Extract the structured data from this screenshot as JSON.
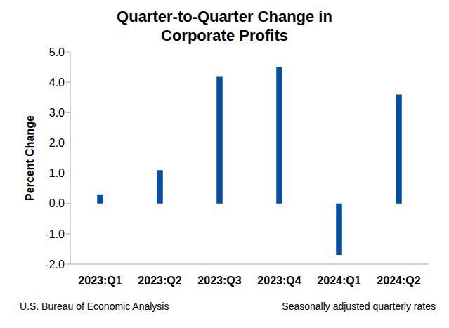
{
  "chart_data": {
    "type": "bar",
    "title": "Quarter-to-Quarter Change in Corporate Profits",
    "y_label": "Percent Change",
    "source": "U.S. Bureau of Economic Analysis",
    "note": "Seasonally adjusted quarterly rates",
    "categories": [
      "2023:Q1",
      "2023:Q2",
      "2023:Q3",
      "2023:Q4",
      "2024:Q1",
      "2024:Q2"
    ],
    "values": [
      0.3,
      1.1,
      4.2,
      4.5,
      -1.7,
      3.6
    ],
    "color": "#034ea2",
    "ylim": [
      -2,
      5
    ],
    "yticks": [
      {
        "value": -2,
        "label": "-2.0"
      },
      {
        "value": -1,
        "label": "-1.0"
      },
      {
        "value": 0,
        "label": "0.0"
      },
      {
        "value": 1,
        "label": "1.0"
      },
      {
        "value": 2,
        "label": "2.0"
      },
      {
        "value": 3,
        "label": "3.0"
      },
      {
        "value": 4,
        "label": "4.0"
      },
      {
        "value": 5,
        "label": "5.0"
      }
    ],
    "grid": false
  }
}
